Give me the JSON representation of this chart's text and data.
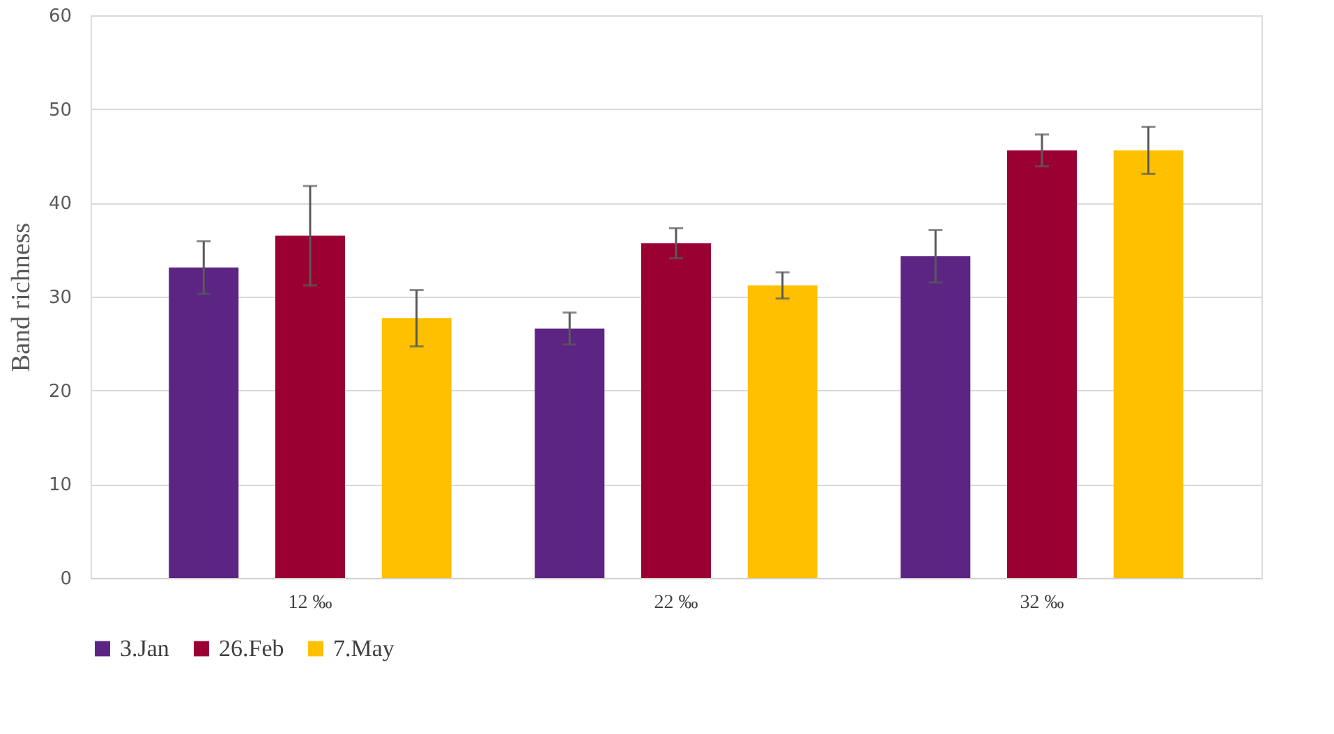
{
  "chart_data": {
    "type": "bar",
    "ylabel": "Band richness",
    "categories": [
      "12 ‰",
      "22 ‰",
      "32 ‰"
    ],
    "series": [
      {
        "name": "3.Jan",
        "color": "#5c2483",
        "values": [
          33.1,
          26.6,
          34.3
        ],
        "errors": [
          2.8,
          1.7,
          2.8
        ]
      },
      {
        "name": "26.Feb",
        "color": "#9b0033",
        "values": [
          36.5,
          35.7,
          45.6
        ],
        "errors": [
          5.3,
          1.6,
          1.7
        ]
      },
      {
        "name": "7.May",
        "color": "#ffc000",
        "values": [
          27.7,
          31.2,
          45.6
        ],
        "errors": [
          3.0,
          1.4,
          2.5
        ]
      }
    ],
    "ylim": [
      0,
      60
    ],
    "yticks": [
      0,
      10,
      20,
      30,
      40,
      50,
      60
    ],
    "grid": "y",
    "legend": "bottom"
  }
}
